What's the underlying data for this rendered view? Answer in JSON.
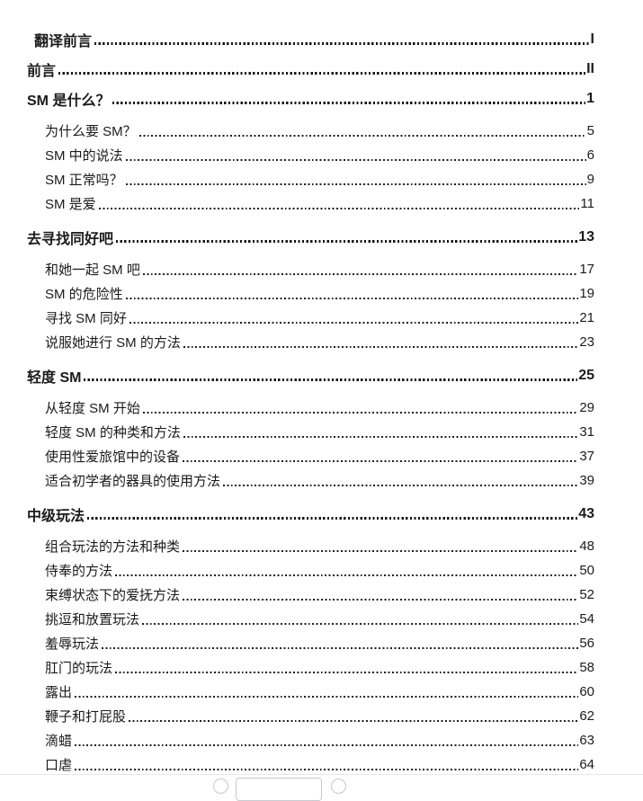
{
  "toc": {
    "entries": [
      {
        "level": 1,
        "title": "翻译前言",
        "page": "I"
      },
      {
        "level": 1,
        "title": "前言",
        "page": "II"
      },
      {
        "level": 1,
        "title": "SM 是什么？",
        "page": "1"
      },
      {
        "level": 2,
        "title": "为什么要 SM？",
        "page": "5"
      },
      {
        "level": 2,
        "title": "SM 中的说法",
        "page": "6"
      },
      {
        "level": 2,
        "title": "SM 正常吗？",
        "page": "9"
      },
      {
        "level": 2,
        "title": "SM 是爱",
        "page": "11"
      },
      {
        "level": 1,
        "title": "去寻找同好吧",
        "page": "13"
      },
      {
        "level": 2,
        "title": "和她一起 SM 吧",
        "page": "17"
      },
      {
        "level": 2,
        "title": "SM 的危险性",
        "page": "19"
      },
      {
        "level": 2,
        "title": "寻找 SM 同好",
        "page": "21"
      },
      {
        "level": 2,
        "title": "说服她进行 SM 的方法",
        "page": "23"
      },
      {
        "level": 1,
        "title": "轻度 SM",
        "page": "25"
      },
      {
        "level": 2,
        "title": "从轻度 SM 开始",
        "page": "29"
      },
      {
        "level": 2,
        "title": "轻度 SM 的种类和方法",
        "page": "31"
      },
      {
        "level": 2,
        "title": "使用性爱旅馆中的设备",
        "page": "37"
      },
      {
        "level": 2,
        "title": "适合初学者的器具的使用方法",
        "page": "39"
      },
      {
        "level": 1,
        "title": "中级玩法",
        "page": "43"
      },
      {
        "level": 2,
        "title": "组合玩法的方法和种类",
        "page": "48"
      },
      {
        "level": 2,
        "title": "侍奉的方法",
        "page": "50"
      },
      {
        "level": 2,
        "title": "束缚状态下的爱抚方法",
        "page": "52"
      },
      {
        "level": 2,
        "title": "挑逗和放置玩法",
        "page": "54"
      },
      {
        "level": 2,
        "title": "羞辱玩法",
        "page": "56"
      },
      {
        "level": 2,
        "title": "肛门的玩法",
        "page": "58"
      },
      {
        "level": 2,
        "title": "露出",
        "page": "60"
      },
      {
        "level": 2,
        "title": "鞭子和打屁股",
        "page": "62"
      },
      {
        "level": 2,
        "title": "滴蜡",
        "page": "63"
      },
      {
        "level": 2,
        "title": "口虐",
        "page": "64"
      }
    ]
  },
  "pager": {
    "page_input_value": ""
  },
  "colors": {
    "text": "#1b1b1b",
    "control_border": "#c6c6d0",
    "divider": "#e7e7ea"
  }
}
